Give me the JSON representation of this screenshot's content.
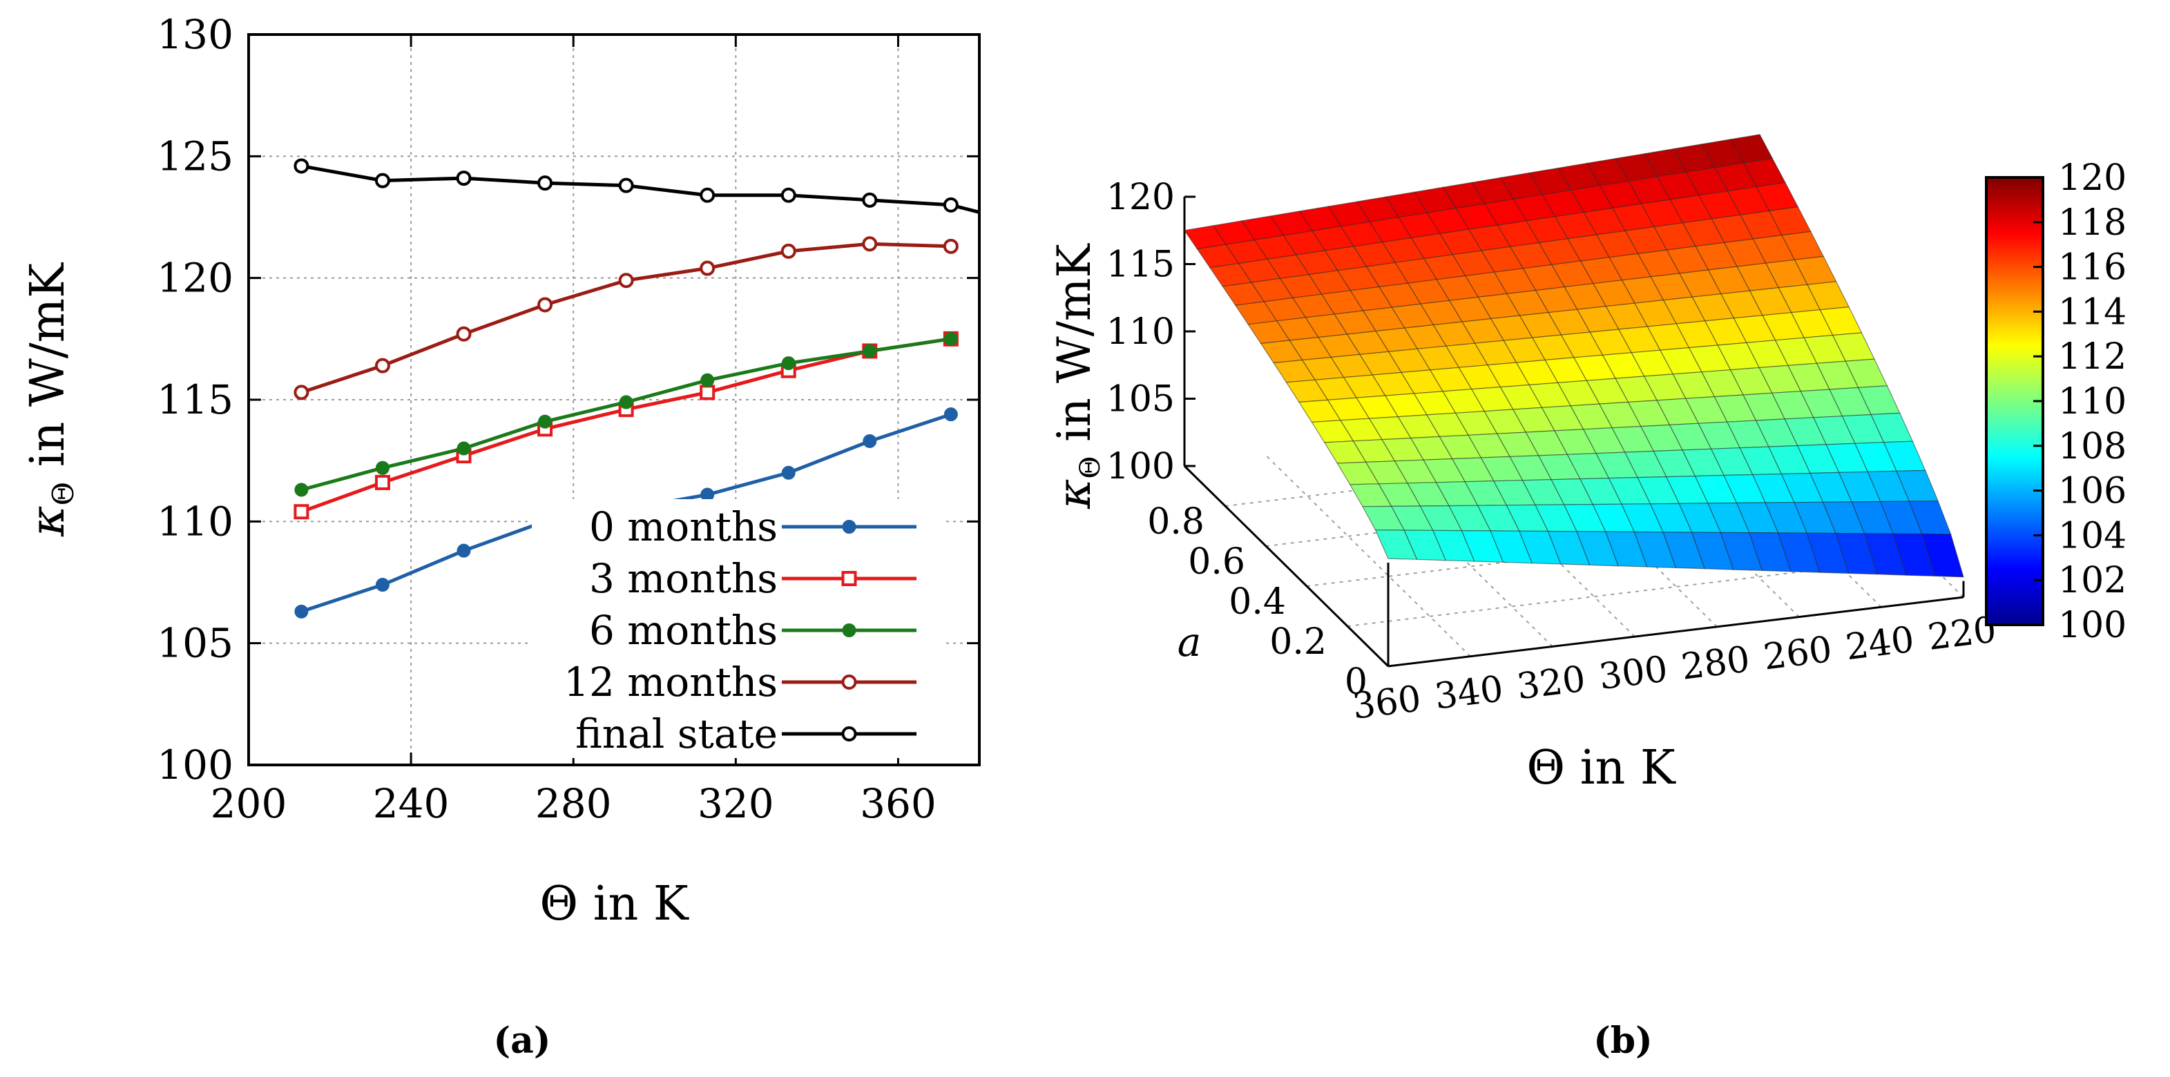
{
  "chart_data": [
    {
      "panel": "a",
      "type": "line",
      "xlabel": "Θ in K",
      "ylabel_main": "κ",
      "ylabel_sub": "Θ",
      "ylabel_rest": " in W/mK",
      "xlim": [
        200,
        380
      ],
      "ylim": [
        100,
        130
      ],
      "xticks": [
        200,
        240,
        280,
        320,
        360
      ],
      "yticks": [
        100,
        105,
        110,
        115,
        120,
        125,
        130
      ],
      "grid": true,
      "legend_position": "bottom-right",
      "caption": "(a)",
      "x": [
        213,
        233,
        253,
        273,
        293,
        313,
        333,
        353,
        373
      ],
      "series": [
        {
          "name": "0 months",
          "color": "#1f5fa6",
          "marker": "filled-circle",
          "values": [
            106.3,
            107.4,
            108.8,
            110.0,
            110.5,
            111.1,
            112.0,
            113.3,
            114.4
          ]
        },
        {
          "name": "3 months",
          "color": "#e41a1c",
          "marker": "open-square",
          "values": [
            110.4,
            111.6,
            112.7,
            113.8,
            114.6,
            115.3,
            116.2,
            117.0,
            117.5
          ]
        },
        {
          "name": "6 months",
          "color": "#1a7a1a",
          "marker": "filled-circle",
          "values": [
            111.3,
            112.2,
            113.0,
            114.1,
            114.9,
            115.8,
            116.5,
            117.0,
            117.5
          ]
        },
        {
          "name": "12 months",
          "color": "#9b1c14",
          "marker": "open-circle",
          "values": [
            115.3,
            116.4,
            117.7,
            118.9,
            119.9,
            120.4,
            121.1,
            121.4,
            121.3
          ]
        },
        {
          "name": "final state",
          "color": "#000000",
          "marker": "open-circle",
          "values": [
            124.6,
            124.0,
            124.1,
            123.9,
            123.8,
            123.4,
            123.4,
            123.2,
            123.0
          ],
          "line_end_value": 122.7
        }
      ]
    },
    {
      "panel": "b",
      "type": "surface",
      "xlabel": "Θ in K",
      "ylabel": "a",
      "zlabel_main": "κ",
      "zlabel_sub": "Θ",
      "zlabel_rest": " in W/mK",
      "theta_range": [
        220,
        360
      ],
      "a_range": [
        0,
        1
      ],
      "z_range": [
        100,
        120
      ],
      "theta_ticks": [
        360,
        340,
        320,
        300,
        280,
        260,
        240,
        220
      ],
      "a_ticks": [
        "0",
        "0.2",
        "0.4",
        "0.6",
        "0.8"
      ],
      "z_ticks": [
        "100",
        "105",
        "110",
        "115",
        "120"
      ],
      "colorbar_ticks": [
        "100",
        "102",
        "104",
        "106",
        "108",
        "110",
        "112",
        "114",
        "116",
        "118",
        "120"
      ],
      "colorbar_range": [
        100,
        120
      ],
      "corner_values": {
        "theta360_a0": 108,
        "theta360_a1": 117.5,
        "theta220_a0": 101.5,
        "theta220_a1": 119.5
      },
      "caption": "(b)"
    }
  ]
}
